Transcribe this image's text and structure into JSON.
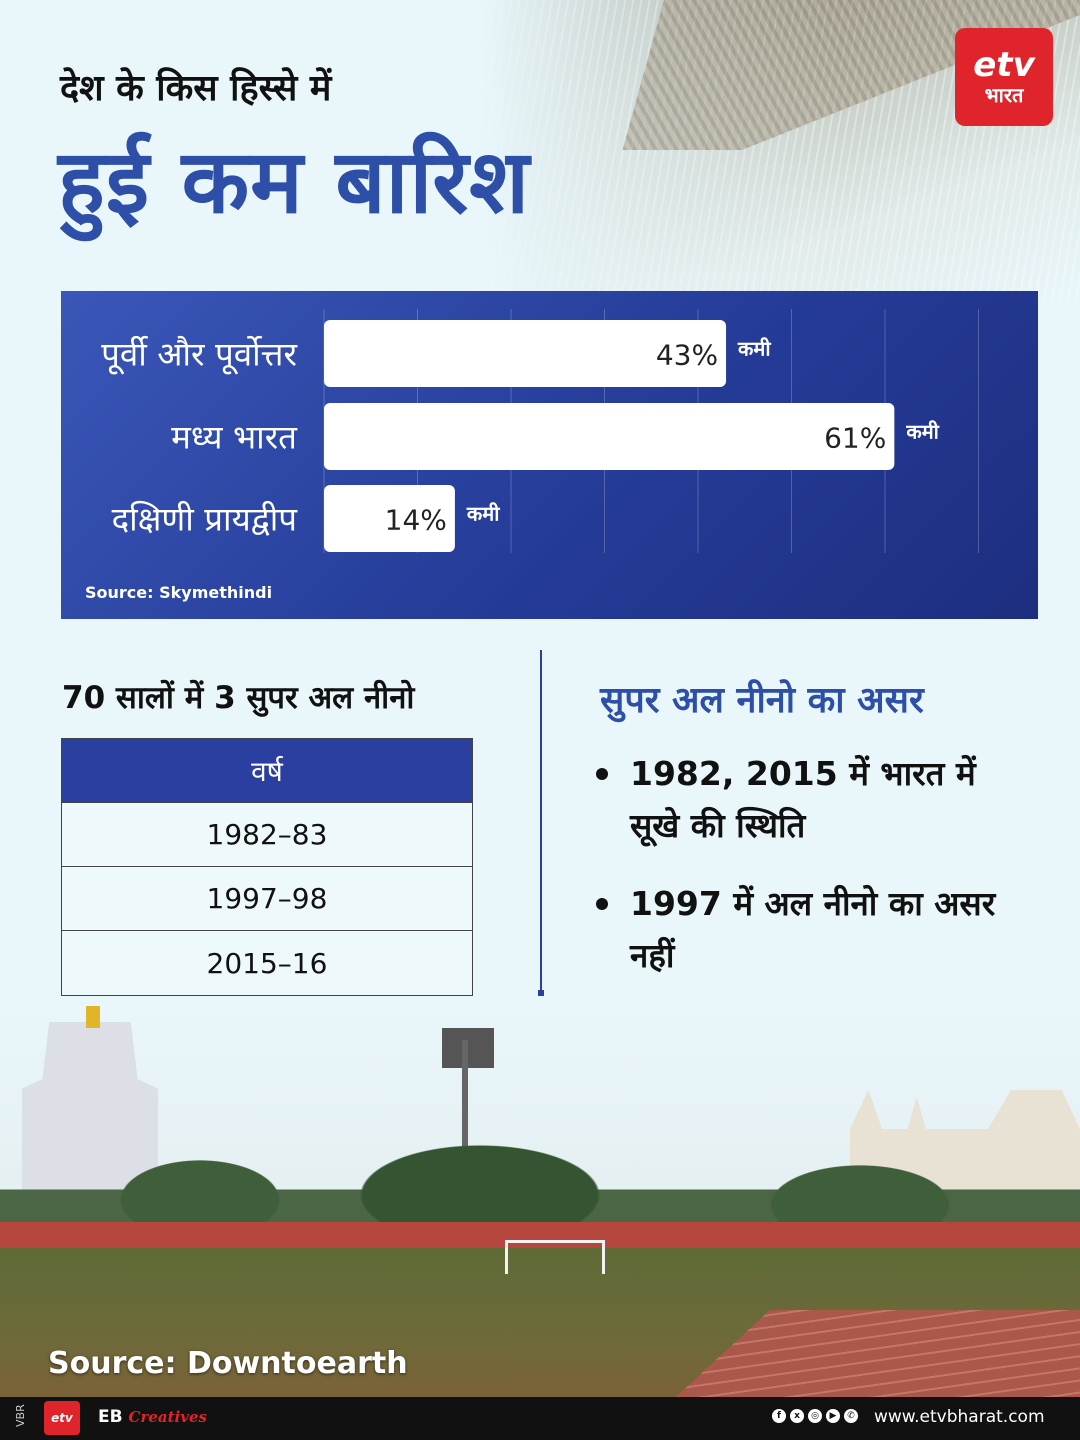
{
  "header": {
    "subtitle": "देश के किस हिस्से में",
    "title": "हुई कम बारिश"
  },
  "logo": {
    "mark": "etv",
    "text": "भारत"
  },
  "chart_data": {
    "type": "bar",
    "orientation": "horizontal",
    "categories": [
      "पूर्वी और पूर्वोत्तर",
      "मध्य भारत",
      "दक्षिणी प्रायद्वीप"
    ],
    "values": [
      43,
      61,
      14
    ],
    "value_labels": [
      "43%",
      "61%",
      "14%"
    ],
    "suffix": "कमी",
    "unit": "%",
    "xlim": [
      0,
      100
    ],
    "grid": true,
    "source": "Source: Skymethindi"
  },
  "table": {
    "heading": "70 सालों में 3 सुपर अल नीनो",
    "header": "वर्ष",
    "rows": [
      "1982–83",
      "1997–98",
      "2015–16"
    ]
  },
  "effects": {
    "heading": "सुपर अल नीनो का असर",
    "bullets": [
      "1982, 2015 में भारत में सूखे की स्थिति",
      "1997 में अल नीनो का असर नहीं"
    ]
  },
  "scene": {
    "source": "Source: Downtoearth"
  },
  "footer": {
    "vbr": "VBR",
    "mini_logo": "etv",
    "eb": "EB",
    "creatives": "Creatives",
    "socials": [
      "f",
      "x",
      "◎",
      "▶",
      "✆"
    ],
    "website": "www.etvbharat.com"
  },
  "colors": {
    "title_blue": "#2d4fa8",
    "panel_blue": "#253c98",
    "brand_red": "#e0242b",
    "bar_fill": "#ffffff"
  }
}
